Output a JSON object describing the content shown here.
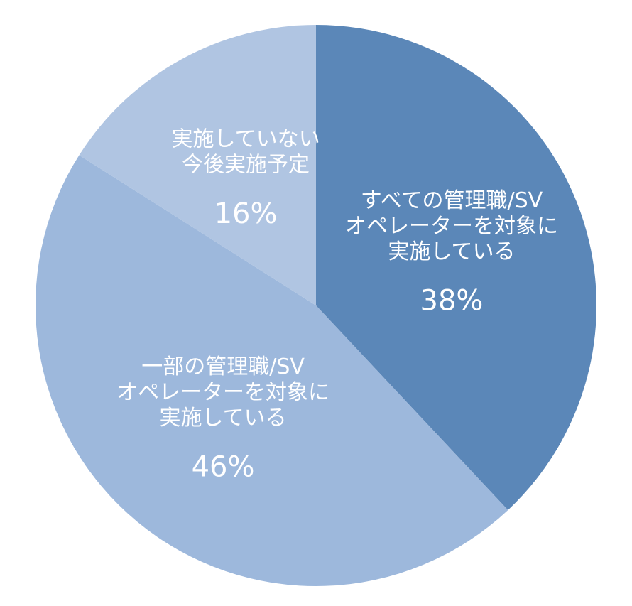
{
  "chart_data": {
    "type": "pie",
    "categories": [
      [
        "すべての管理職/SV",
        "オペレーターを対象に",
        "実施している"
      ],
      [
        "一部の管理職/SV",
        "オペレーターを対象に",
        "実施している"
      ],
      [
        "実施していない",
        "今後実施予定"
      ]
    ],
    "values": [
      38,
      46,
      16
    ],
    "value_labels": [
      "38%",
      "46%",
      "16%"
    ],
    "colors": [
      "#5b87b8",
      "#9db8dc",
      "#b0c5e2"
    ]
  }
}
